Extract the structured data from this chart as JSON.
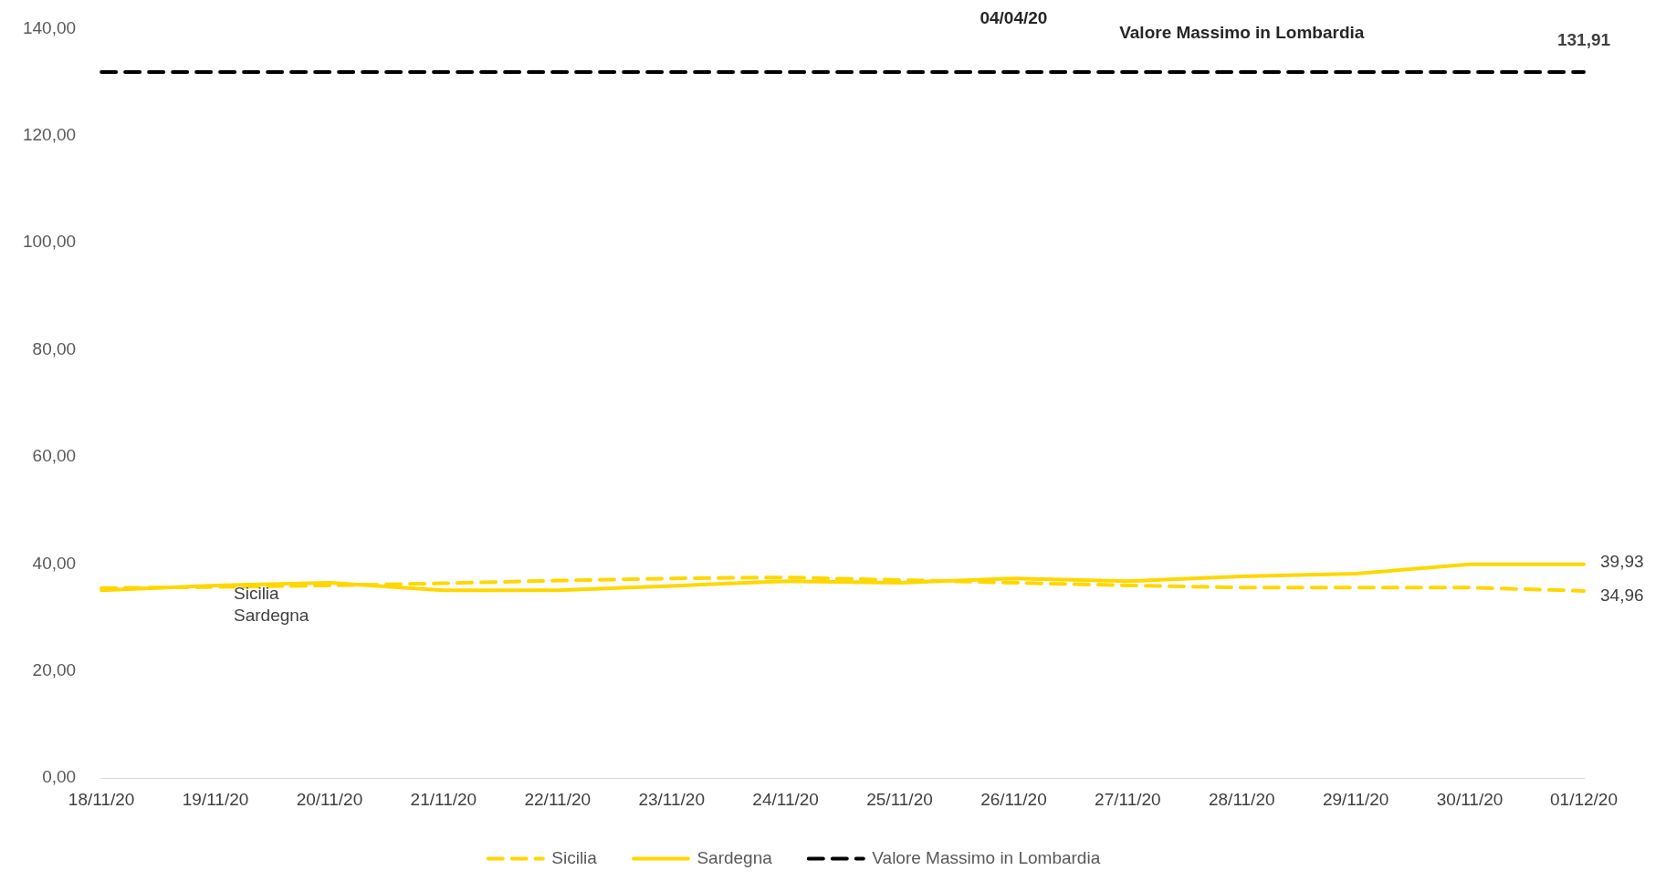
{
  "chart_data": {
    "type": "line",
    "categories": [
      "18/11/20",
      "19/11/20",
      "20/11/20",
      "21/11/20",
      "22/11/20",
      "23/11/20",
      "24/11/20",
      "25/11/20",
      "26/11/20",
      "27/11/20",
      "28/11/20",
      "29/11/20",
      "30/11/20",
      "01/12/20"
    ],
    "series": [
      {
        "name": "Sicilia",
        "color": "#ffd700",
        "line_style": "dashed",
        "values": [
          35.5,
          35.7,
          36.0,
          36.4,
          36.9,
          37.3,
          37.5,
          37.0,
          36.5,
          36.0,
          35.6,
          35.6,
          35.6,
          34.96
        ],
        "value_labels": [
          null,
          null,
          null,
          null,
          null,
          null,
          null,
          null,
          null,
          null,
          null,
          null,
          null,
          "34,96"
        ]
      },
      {
        "name": "Sardegna",
        "color": "#ffd700",
        "line_style": "solid",
        "values": [
          35.1,
          36.0,
          36.5,
          35.1,
          35.1,
          35.9,
          36.8,
          36.5,
          37.3,
          36.8,
          37.7,
          38.2,
          39.93,
          39.93
        ],
        "value_labels": [
          null,
          null,
          null,
          null,
          null,
          null,
          null,
          null,
          null,
          null,
          null,
          null,
          null,
          "39,93"
        ]
      },
      {
        "name": "Valore Massimo in Lombardia",
        "color": "#000000",
        "line_style": "dashed",
        "values": [
          131.91,
          131.91,
          131.91,
          131.91,
          131.91,
          131.91,
          131.91,
          131.91,
          131.91,
          131.91,
          131.91,
          131.91,
          131.91,
          131.91
        ],
        "value_labels": [
          null,
          null,
          null,
          null,
          null,
          null,
          null,
          null,
          null,
          null,
          null,
          null,
          null,
          "131,91"
        ]
      }
    ],
    "annotations": [
      "04/04/20",
      "Valore Massimo in Lombardia",
      "Sicilia",
      "Sardegna"
    ],
    "ylim": [
      0,
      140
    ],
    "yticks": [
      {
        "value": 0,
        "label": "0,00"
      },
      {
        "value": 20,
        "label": "20,00"
      },
      {
        "value": 40,
        "label": "40,00"
      },
      {
        "value": 60,
        "label": "60,00"
      },
      {
        "value": 80,
        "label": "80,00"
      },
      {
        "value": 100,
        "label": "100,00"
      },
      {
        "value": 120,
        "label": "120,00"
      },
      {
        "value": 140,
        "label": "140,00"
      }
    ],
    "grid": false,
    "legend": "bottom",
    "marker": "none"
  }
}
